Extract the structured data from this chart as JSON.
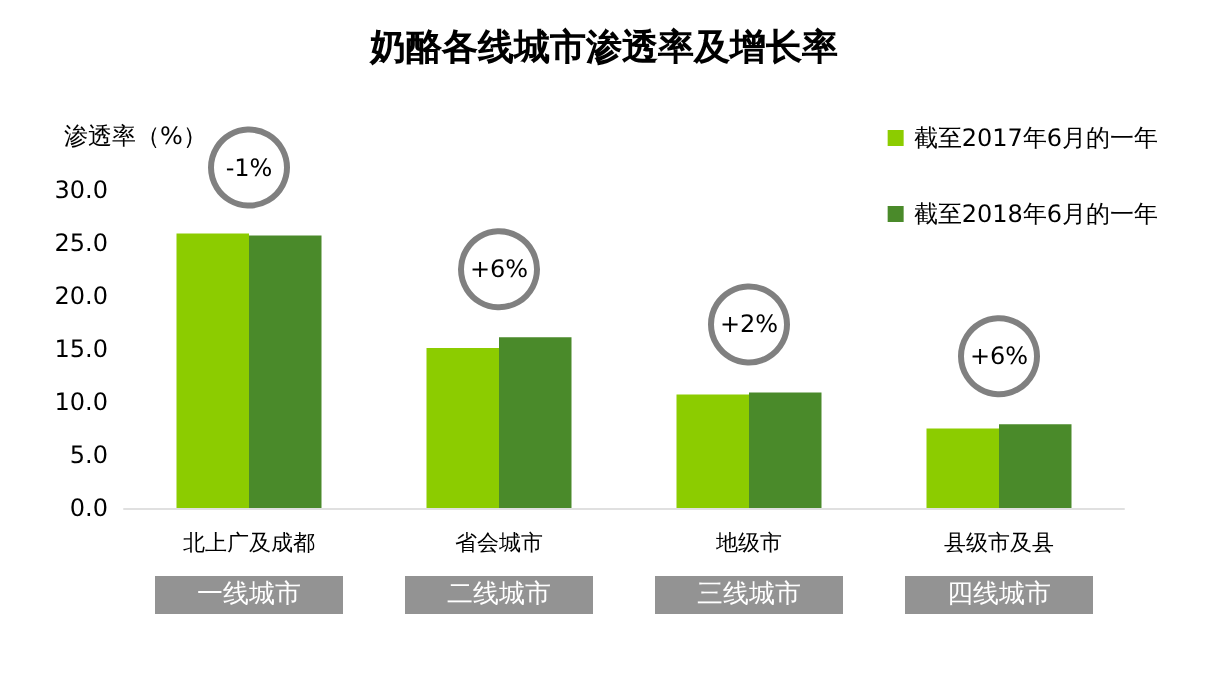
{
  "chart_data": {
    "type": "bar",
    "title": "奶酪各线城市渗透率及增长率",
    "ylabel": "渗透率（%）",
    "categories": [
      "北上广及成都",
      "省会城市",
      "地级市",
      "县级市及县"
    ],
    "series": [
      {
        "name": "截至2017年6月的一年",
        "color": "#8ccc00",
        "values": [
          25.9,
          15.1,
          10.7,
          7.5
        ]
      },
      {
        "name": "截至2018年6月的一年",
        "color": "#4a8a2a",
        "values": [
          25.7,
          16.1,
          10.9,
          7.9
        ]
      }
    ],
    "ylim": [
      0,
      30
    ],
    "yticks": [
      {
        "value": 0,
        "label": "0.0"
      },
      {
        "value": 5,
        "label": "5.0"
      },
      {
        "value": 10,
        "label": "10.0"
      },
      {
        "value": 15,
        "label": "15.0"
      },
      {
        "value": 20,
        "label": "20.0"
      },
      {
        "value": 25,
        "label": "25.0"
      },
      {
        "value": 30,
        "label": "30.0"
      }
    ],
    "annotations": [
      {
        "text": "-1%",
        "x": "北上广及成都",
        "y": 25.7
      },
      {
        "text": "+6%",
        "x": "省会城市",
        "y": 16.1
      },
      {
        "text": "+2%",
        "x": "地级市",
        "y": 10.9
      },
      {
        "text": "+6%",
        "x": "县级市及县",
        "y": 7.9
      },
      "一线城市",
      "二线城市",
      "三线城市",
      "四线城市"
    ],
    "grid": false,
    "legend": "top right"
  }
}
